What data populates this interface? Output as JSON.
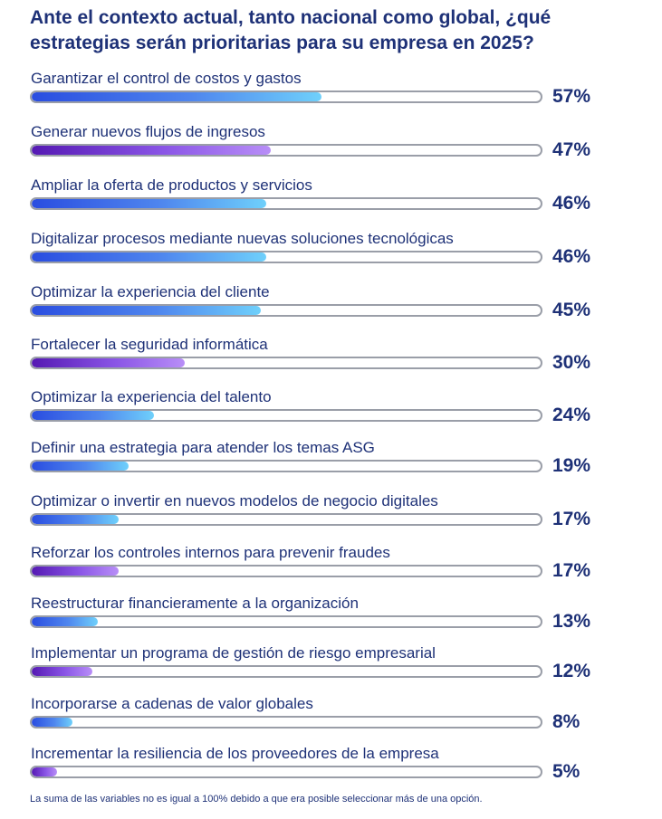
{
  "title": "Ante el contexto actual, tanto nacional como global, ¿qué estrategias serán prioritarias para su empresa en 2025?",
  "footnote": "La suma de las variables no es igual a 100% debido a que era posible seleccionar más de una opción.",
  "colors": {
    "text": "#1e3177",
    "track_border": "#9a9ea8",
    "blue_gradient": [
      "#2a4de0",
      "#4f86ee",
      "#6fd0fb"
    ],
    "purple_gradient": [
      "#5519b3",
      "#8a55e6",
      "#b88ef7"
    ]
  },
  "chart_data": {
    "type": "bar",
    "orientation": "horizontal",
    "title": "Ante el contexto actual, tanto nacional como global, ¿qué estrategias serán prioritarias para su empresa en 2025?",
    "xlabel": "",
    "ylabel": "",
    "xlim": [
      0,
      100
    ],
    "unit": "%",
    "categories": [
      "Garantizar el control de costos y gastos",
      "Generar nuevos flujos de ingresos",
      "Ampliar la oferta de productos y servicios",
      "Digitalizar procesos mediante nuevas soluciones tecnológicas",
      "Optimizar la experiencia del cliente",
      "Fortalecer la seguridad informática",
      "Optimizar la experiencia del talento",
      "Definir una estrategia para atender los temas ASG",
      "Optimizar o invertir en nuevos modelos de negocio digitales",
      "Reforzar los controles internos para prevenir fraudes",
      "Reestructurar financieramente a la organización",
      "Implementar un programa de gestión de riesgo empresarial",
      "Incorporarse a cadenas de valor globales",
      "Incrementar la resiliencia de los proveedores de la empresa"
    ],
    "values": [
      57,
      47,
      46,
      46,
      45,
      30,
      24,
      19,
      17,
      17,
      13,
      12,
      8,
      5
    ],
    "value_labels": [
      "57%",
      "47%",
      "46%",
      "46%",
      "45%",
      "30%",
      "24%",
      "19%",
      "17%",
      "17%",
      "13%",
      "12%",
      "8%",
      "5%"
    ],
    "bar_styles": [
      "blue",
      "purple",
      "blue",
      "blue",
      "blue",
      "purple",
      "blue",
      "blue",
      "blue",
      "purple",
      "blue",
      "purple",
      "blue",
      "purple"
    ]
  }
}
